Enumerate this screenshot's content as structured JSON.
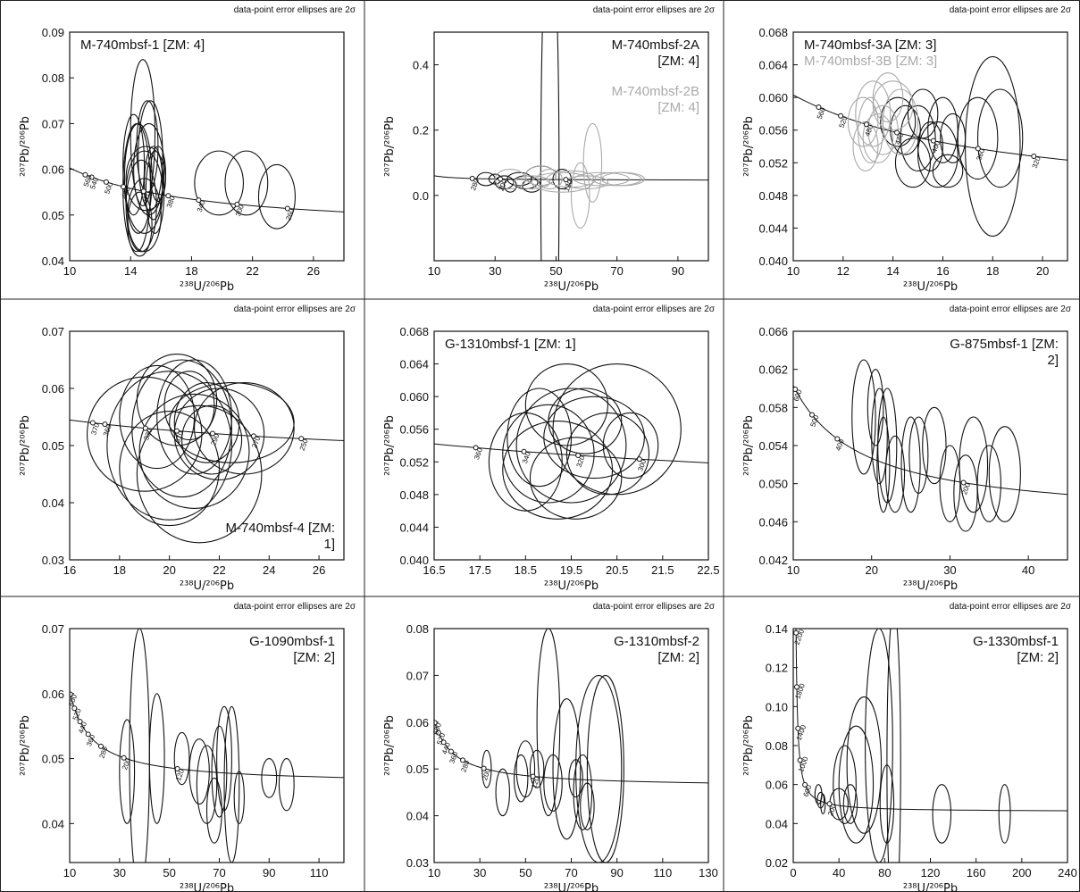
{
  "chart_data": [
    {
      "type": "concordia",
      "note": "data-point error ellipses are 2σ",
      "x_label": "²³⁸U/²⁰⁶Pb",
      "y_label": "²⁰⁷Pb/²⁰⁶Pb",
      "legend": "upper-left",
      "xlim": [
        10,
        28
      ],
      "xticks": [
        10,
        14,
        18,
        22,
        26
      ],
      "ylim": [
        0.04,
        0.09
      ],
      "yticks": [
        0.04,
        0.05,
        0.06,
        0.07,
        0.08,
        0.09
      ],
      "concordia_ages": [
        560,
        540,
        500,
        460,
        420,
        380,
        340,
        300,
        260
      ],
      "series": [
        {
          "name": "M-740mbsf-1 [ZM: 4]",
          "color": "#111111",
          "x": [
            14.8,
            15.2,
            14.5,
            15.5,
            14.9,
            14.2,
            15.8,
            14.7,
            15.3,
            14.9,
            15.6,
            14.4,
            15.0,
            19.8,
            21.6,
            23.6,
            15.1,
            14.6
          ],
          "y": [
            0.068,
            0.06,
            0.058,
            0.057,
            0.055,
            0.061,
            0.059,
            0.052,
            0.063,
            0.05,
            0.055,
            0.056,
            0.058,
            0.057,
            0.057,
            0.054,
            0.065,
            0.048
          ],
          "sx": [
            0.8,
            1.0,
            0.9,
            0.6,
            1.2,
            0.7,
            0.5,
            1.0,
            0.8,
            1.1,
            0.6,
            0.9,
            1.3,
            1.6,
            1.4,
            1.2,
            0.7,
            0.8
          ],
          "sy": [
            0.016,
            0.01,
            0.012,
            0.008,
            0.009,
            0.011,
            0.006,
            0.01,
            0.012,
            0.008,
            0.009,
            0.014,
            0.007,
            0.007,
            0.007,
            0.007,
            0.01,
            0.007
          ]
        }
      ]
    },
    {
      "type": "concordia",
      "note": "data-point error ellipses are 2σ",
      "x_label": "²³⁸U/²⁰⁶Pb",
      "y_label": "²⁰⁷Pb/²⁰⁶Pb",
      "legend": "upper-right",
      "xlim": [
        10,
        100
      ],
      "xticks": [
        10,
        30,
        50,
        70,
        90
      ],
      "ylim": [
        -0.2,
        0.5
      ],
      "yticks": [
        {
          "value": 0,
          "label": "0.0"
        },
        0.2,
        0.4
      ],
      "concordia_ages": [
        280,
        200,
        120
      ],
      "series": [
        {
          "name": "M-740mbsf-2A [ZM: 4]",
          "color": "#111111",
          "x": [
            27,
            33,
            38,
            42,
            45,
            48,
            35,
            30,
            52,
            40
          ],
          "y": [
            0.05,
            0.04,
            0.05,
            0.03,
            0.06,
            0.05,
            0.03,
            0.05,
            0.05,
            0.04
          ],
          "sx": [
            3,
            3,
            4,
            3,
            5,
            3,
            2,
            2,
            3,
            4
          ],
          "sy": [
            0.02,
            0.02,
            0.02,
            0.02,
            0.03,
            0.8,
            0.02,
            0.015,
            0.03,
            0.02
          ]
        },
        {
          "name": "M-740mbsf-2B [ZM: 4]",
          "color": "#aaaaaa",
          "x": [
            35,
            42,
            48,
            55,
            60,
            65,
            70,
            62,
            58,
            45,
            72,
            52
          ],
          "y": [
            0.05,
            0.04,
            0.05,
            0.05,
            0.04,
            0.05,
            0.05,
            0.1,
            0.0,
            0.06,
            0.05,
            0.04
          ],
          "sx": [
            5,
            6,
            4,
            8,
            7,
            9,
            8,
            3,
            3,
            5,
            7,
            10
          ],
          "sy": [
            0.03,
            0.02,
            0.03,
            0.025,
            0.02,
            0.02,
            0.02,
            0.12,
            0.1,
            0.03,
            0.02,
            0.03
          ]
        }
      ]
    },
    {
      "type": "concordia",
      "note": "data-point error ellipses are 2σ",
      "x_label": "²³⁸U/²⁰⁶Pb",
      "y_label": "²⁰⁷Pb/²⁰⁶Pb",
      "legend": "upper-left",
      "xlim": [
        10,
        21
      ],
      "xticks": [
        10,
        12,
        14,
        16,
        18,
        20
      ],
      "ylim": [
        0.04,
        0.068
      ],
      "yticks": [
        {
          "value": 0.04,
          "label": "0.040"
        },
        0.044,
        0.048,
        0.052,
        0.056,
        {
          "value": 0.06,
          "label": "0.060"
        },
        0.064,
        0.068
      ],
      "concordia_ages": [
        560,
        520,
        480,
        440,
        400,
        360,
        320
      ],
      "series": [
        {
          "name": "M-740mbsf-3A [ZM: 3]",
          "color": "#111111",
          "x": [
            14.5,
            15.0,
            15.5,
            16.0,
            14.2,
            15.8,
            16.4,
            17.4,
            18.0,
            18.3,
            15.2,
            14.8,
            16.2
          ],
          "y": [
            0.056,
            0.055,
            0.054,
            0.056,
            0.057,
            0.053,
            0.055,
            0.055,
            0.054,
            0.055,
            0.058,
            0.052,
            0.051
          ],
          "sx": [
            0.6,
            0.7,
            0.5,
            0.6,
            0.7,
            0.8,
            0.5,
            0.8,
            1.1,
            0.9,
            0.6,
            0.7,
            0.6
          ],
          "sy": [
            0.003,
            0.004,
            0.003,
            0.004,
            0.003,
            0.004,
            0.003,
            0.005,
            0.011,
            0.006,
            0.003,
            0.003,
            0.002
          ]
        },
        {
          "name": "M-740mbsf-3B [ZM: 3]",
          "color": "#aaaaaa",
          "x": [
            12.8,
            13.2,
            13.6,
            14.0,
            13.4,
            12.9,
            14.3,
            13.8,
            13.1
          ],
          "y": [
            0.057,
            0.058,
            0.056,
            0.059,
            0.055,
            0.054,
            0.057,
            0.06,
            0.056
          ],
          "sx": [
            0.6,
            0.7,
            0.6,
            0.8,
            0.6,
            0.5,
            0.7,
            0.6,
            0.5
          ],
          "sy": [
            0.003,
            0.004,
            0.003,
            0.003,
            0.003,
            0.003,
            0.004,
            0.003,
            0.004
          ]
        }
      ]
    },
    {
      "type": "concordia",
      "note": "data-point error ellipses are 2σ",
      "x_label": "²³⁸U/²⁰⁶Pb",
      "y_label": "²⁰⁷Pb/²⁰⁶Pb",
      "legend": "lower-right",
      "xlim": [
        16,
        27
      ],
      "xticks": [
        16,
        18,
        20,
        22,
        24,
        26
      ],
      "ylim": [
        0.03,
        0.07
      ],
      "yticks": [
        0.03,
        0.04,
        0.05,
        0.06,
        0.07
      ],
      "concordia_ages": [
        370,
        360,
        330,
        310,
        290,
        270,
        250
      ],
      "series": [
        {
          "name": "M-740mbsf-4 [ZM: 1]",
          "color": "#111111",
          "x": [
            21,
            20.5,
            21.5,
            20,
            22,
            19.5,
            21,
            20.8,
            22.5,
            19,
            21.2,
            20.3,
            23,
            21.7,
            20
          ],
          "y": [
            0.055,
            0.053,
            0.054,
            0.05,
            0.052,
            0.055,
            0.049,
            0.057,
            0.054,
            0.052,
            0.045,
            0.058,
            0.053,
            0.051,
            0.046
          ],
          "sx": [
            1.5,
            2,
            1.3,
            2.5,
            1.8,
            1.5,
            2.2,
            1,
            2.5,
            2.3,
            2.5,
            1.6,
            2.0,
            1.2,
            2.0
          ],
          "sy": [
            0.01,
            0.012,
            0.007,
            0.013,
            0.008,
            0.009,
            0.01,
            0.006,
            0.007,
            0.01,
            0.012,
            0.008,
            0.008,
            0.006,
            0.01
          ]
        }
      ]
    },
    {
      "type": "concordia",
      "note": "data-point error ellipses are 2σ",
      "x_label": "²³⁸U/²⁰⁶Pb",
      "y_label": "²⁰⁷Pb/²⁰⁶Pb",
      "legend": "upper-left",
      "xlim": [
        16.5,
        22.5
      ],
      "xticks": [
        16.5,
        17.5,
        18.5,
        19.5,
        20.5,
        21.5,
        22.5
      ],
      "ylim": [
        0.04,
        0.068
      ],
      "yticks": [
        {
          "value": 0.04,
          "label": "0.040"
        },
        0.044,
        0.048,
        0.052,
        0.056,
        {
          "value": 0.06,
          "label": "0.060"
        },
        0.064,
        0.068
      ],
      "concordia_ages": [
        360,
        340,
        320,
        300
      ],
      "series": [
        {
          "name": "G-1310mbsf-1 [ZM: 1]",
          "color": "#111111",
          "x": [
            19.5,
            19.0,
            20.0,
            19.8,
            19.2,
            20.3,
            18.8,
            19.6,
            20.5,
            19.4,
            18.5,
            20.8
          ],
          "y": [
            0.054,
            0.053,
            0.055,
            0.057,
            0.051,
            0.053,
            0.055,
            0.05,
            0.056,
            0.059,
            0.052,
            0.054
          ],
          "sx": [
            1.2,
            1.0,
            1.1,
            0.8,
            1.2,
            0.9,
            0.7,
            1.0,
            1.4,
            0.9,
            0.8,
            0.6
          ],
          "sy": [
            0.007,
            0.006,
            0.005,
            0.004,
            0.006,
            0.005,
            0.006,
            0.005,
            0.008,
            0.005,
            0.006,
            0.004
          ]
        }
      ]
    },
    {
      "type": "concordia",
      "note": "data-point error ellipses are 2σ",
      "x_label": "²³⁸U/²⁰⁶Pb",
      "y_label": "²⁰⁷Pb/²⁰⁶Pb",
      "legend": "upper-right",
      "xlim": [
        10,
        45
      ],
      "xticks": [
        10,
        20,
        30,
        40
      ],
      "ylim": [
        0.042,
        0.066
      ],
      "yticks": [
        0.042,
        0.046,
        {
          "value": 0.05,
          "label": "0.050"
        },
        0.054,
        0.058,
        0.062,
        0.066
      ],
      "concordia_ages": [
        600,
        500,
        400,
        200
      ],
      "series": [
        {
          "name": "G-875mbsf-1 [ZM: 2]",
          "color": "#111111",
          "x": [
            19,
            21,
            22,
            21.5,
            20.5,
            23,
            25,
            28,
            30,
            33,
            35,
            37,
            32,
            26
          ],
          "y": [
            0.057,
            0.055,
            0.054,
            0.052,
            0.058,
            0.051,
            0.052,
            0.054,
            0.05,
            0.052,
            0.05,
            0.051,
            0.049,
            0.053
          ],
          "sx": [
            1.5,
            1,
            1.2,
            0.8,
            1,
            1.2,
            1.2,
            1.5,
            1.3,
            1.8,
            1.5,
            2,
            1.5,
            1.2
          ],
          "sy": [
            0.006,
            0.005,
            0.006,
            0.005,
            0.004,
            0.004,
            0.005,
            0.004,
            0.004,
            0.005,
            0.004,
            0.005,
            0.004,
            0.004
          ]
        }
      ]
    },
    {
      "type": "concordia",
      "note": "data-point error ellipses are 2σ",
      "x_label": "²³⁸U/²⁰⁶Pb",
      "y_label": "²⁰⁷Pb/²⁰⁶Pb",
      "legend": "upper-right",
      "xlim": [
        10,
        120
      ],
      "xticks": [
        10,
        30,
        50,
        70,
        90,
        110
      ],
      "ylim": [
        0.034,
        0.07
      ],
      "yticks": [
        0.04,
        0.05,
        0.06,
        0.07
      ],
      "concordia_ages": [
        600,
        520,
        440,
        360,
        280,
        200,
        120
      ],
      "series": [
        {
          "name": "G-1090mbsf-1 [ZM: 2]",
          "color": "#111111",
          "x": [
            33,
            38,
            45,
            55,
            62,
            65,
            70,
            72,
            68,
            75,
            78,
            90,
            97
          ],
          "y": [
            0.048,
            0.05,
            0.05,
            0.05,
            0.048,
            0.046,
            0.048,
            0.05,
            0.042,
            0.046,
            0.044,
            0.047,
            0.046
          ],
          "sx": [
            3,
            4,
            3,
            3,
            4,
            4,
            3,
            3,
            3,
            3,
            2,
            3,
            3
          ],
          "sy": [
            0.008,
            0.02,
            0.01,
            0.004,
            0.005,
            0.006,
            0.007,
            0.008,
            0.005,
            0.012,
            0.004,
            0.003,
            0.004
          ]
        }
      ]
    },
    {
      "type": "concordia",
      "note": "data-point error ellipses are 2σ",
      "x_label": "²³⁸U/²⁰⁶Pb",
      "y_label": "²⁰⁷Pb/²⁰⁶Pb",
      "legend": "upper-right",
      "xlim": [
        10,
        130
      ],
      "xticks": [
        10,
        30,
        50,
        70,
        90,
        110,
        130
      ],
      "ylim": [
        0.03,
        0.08
      ],
      "yticks": [
        0.03,
        0.04,
        0.05,
        0.06,
        0.07,
        0.08
      ],
      "concordia_ages": [
        600,
        520,
        440,
        360,
        280,
        200,
        120
      ],
      "series": [
        {
          "name": "G-1310mbsf-2 [ZM: 2]",
          "color": "#111111",
          "x": [
            33,
            40,
            48,
            55,
            62,
            68,
            72,
            75,
            82,
            85,
            60,
            50,
            77
          ],
          "y": [
            0.05,
            0.045,
            0.048,
            0.05,
            0.047,
            0.05,
            0.048,
            0.045,
            0.05,
            0.05,
            0.06,
            0.05,
            0.042
          ],
          "sx": [
            2,
            3,
            3,
            3,
            4,
            6,
            3,
            4,
            10,
            8,
            5,
            4,
            3
          ],
          "sy": [
            0.004,
            0.005,
            0.005,
            0.004,
            0.006,
            0.015,
            0.004,
            0.008,
            0.02,
            0.02,
            0.02,
            0.006,
            0.005
          ]
        }
      ]
    },
    {
      "type": "concordia",
      "note": "data-point error ellipses are 2σ",
      "x_label": "²³⁸U/²⁰⁶Pb",
      "y_label": "²⁰⁷Pb/²⁰⁶Pb",
      "legend": "upper-right",
      "xlim": [
        0,
        240
      ],
      "xticks": [
        0,
        40,
        80,
        120,
        160,
        200,
        240
      ],
      "ylim": [
        0.02,
        0.14
      ],
      "yticks": [
        0.02,
        0.04,
        0.06,
        0.08,
        {
          "value": 0.1,
          "label": "0.10"
        },
        0.12,
        0.14
      ],
      "concordia_ages": [
        2200,
        1800,
        1400,
        1000,
        600,
        200
      ],
      "series": [
        {
          "name": "G-1330mbsf-1 [ZM: 2]",
          "color": "#111111",
          "x": [
            22,
            24,
            26,
            40,
            55,
            62,
            75,
            82,
            88,
            130,
            185,
            45,
            50
          ],
          "y": [
            0.055,
            0.052,
            0.05,
            0.05,
            0.06,
            0.07,
            0.08,
            0.05,
            0.07,
            0.045,
            0.045,
            0.06,
            0.05
          ],
          "sx": [
            3,
            3,
            2,
            8,
            15,
            15,
            12,
            6,
            6,
            8,
            5,
            10,
            6
          ],
          "sy": [
            0.005,
            0.004,
            0.005,
            0.008,
            0.03,
            0.035,
            0.06,
            0.02,
            0.08,
            0.015,
            0.015,
            0.02,
            0.01
          ]
        }
      ]
    }
  ]
}
